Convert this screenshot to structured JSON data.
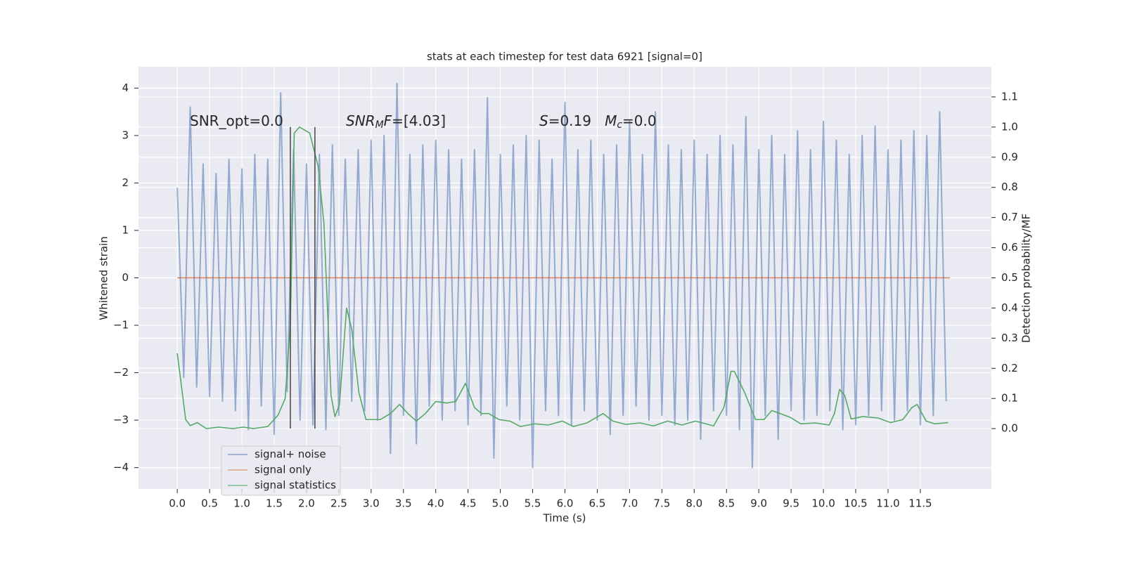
{
  "chart_data": {
    "type": "line",
    "title": "stats at each timestep for test data 6921 [signal=0]",
    "xlabel": "Time (s)",
    "ylabel": "Whitened strain",
    "y2label": "Detection probability/MF",
    "xlim": [
      -0.6,
      12.6
    ],
    "ylim": [
      -4.45,
      4.45
    ],
    "y2lim": [
      -0.2,
      1.2
    ],
    "xticks": [
      {
        "value": 0,
        "label": "0.0"
      },
      0.5,
      {
        "value": 1,
        "label": "1.0"
      },
      1.5,
      {
        "value": 2,
        "label": "2.0"
      },
      2.5,
      {
        "value": 3,
        "label": "3.0"
      },
      3.5,
      {
        "value": 4,
        "label": "4.0"
      },
      4.5,
      {
        "value": 5,
        "label": "5.0"
      },
      5.5,
      {
        "value": 6,
        "label": "6.0"
      },
      6.5,
      {
        "value": 7,
        "label": "7.0"
      },
      7.5,
      {
        "value": 8,
        "label": "8.0"
      },
      8.5,
      {
        "value": 9,
        "label": "9.0"
      },
      9.5,
      {
        "value": 10,
        "label": "10.0"
      },
      10.5,
      {
        "value": 11,
        "label": "11.0"
      },
      11.5
    ],
    "yticks": [
      {
        "value": -4,
        "label": "−4"
      },
      {
        "value": -3,
        "label": "−3"
      },
      {
        "value": -2,
        "label": "−2"
      },
      {
        "value": -1,
        "label": "−1"
      },
      0,
      1,
      2,
      3,
      4
    ],
    "y2ticks": [
      {
        "value": 0,
        "label": "0.0"
      },
      0.1,
      0.2,
      0.3,
      0.4,
      0.5,
      0.6,
      0.7,
      0.8,
      0.9,
      {
        "value": 1,
        "label": "1.0"
      },
      1.1
    ],
    "grid": true,
    "legend": "lower left",
    "series": [
      {
        "name": "signal+ noise",
        "color": "#4c72b0",
        "x": [
          0,
          0.1,
          0.2,
          0.3,
          0.4,
          0.5,
          0.6,
          0.7,
          0.8,
          0.9,
          1,
          1.1,
          1.2,
          1.3,
          1.4,
          1.5,
          1.6,
          1.7,
          1.8,
          1.9,
          2,
          2.1,
          2.2,
          2.3,
          2.4,
          2.5,
          2.6,
          2.7,
          2.8,
          2.9,
          3,
          3.1,
          3.2,
          3.3,
          3.4,
          3.5,
          3.6,
          3.7,
          3.8,
          3.9,
          4,
          4.1,
          4.2,
          4.3,
          4.4,
          4.5,
          4.6,
          4.7,
          4.8,
          4.9,
          5,
          5.1,
          5.2,
          5.3,
          5.4,
          5.5,
          5.6,
          5.7,
          5.8,
          5.9,
          6,
          6.1,
          6.2,
          6.3,
          6.4,
          6.5,
          6.6,
          6.7,
          6.8,
          6.9,
          7,
          7.1,
          7.2,
          7.3,
          7.4,
          7.5,
          7.6,
          7.7,
          7.8,
          7.9,
          8,
          8.1,
          8.2,
          8.3,
          8.4,
          8.5,
          8.6,
          8.7,
          8.8,
          8.9,
          9,
          9.1,
          9.2,
          9.3,
          9.4,
          9.5,
          9.6,
          9.7,
          9.8,
          9.9,
          10,
          10.1,
          10.2,
          10.3,
          10.4,
          10.5,
          10.6,
          10.7,
          10.8,
          10.9,
          11,
          11.1,
          11.2,
          11.3,
          11.4,
          11.5,
          11.6,
          11.7,
          11.8,
          11.9
        ],
        "values": [
          1.9,
          -2.1,
          3.6,
          -2.3,
          2.4,
          -2.5,
          2.2,
          -2.6,
          2.5,
          -2.8,
          2.3,
          -3.2,
          2.6,
          -2.7,
          2.5,
          -3.3,
          3.9,
          -2.4,
          2.7,
          -3.0,
          2.4,
          -3.1,
          2.6,
          -3.2,
          2.8,
          -2.9,
          2.5,
          -2.6,
          2.7,
          -2.8,
          2.9,
          -3.0,
          3.0,
          -3.7,
          4.1,
          -2.9,
          2.6,
          -3.5,
          2.8,
          -2.7,
          2.9,
          -3.0,
          2.7,
          -2.8,
          2.5,
          -3.1,
          2.7,
          -2.9,
          3.8,
          -3.8,
          2.6,
          -2.7,
          2.8,
          -3.0,
          3.0,
          -4.0,
          2.9,
          -2.8,
          2.5,
          -2.9,
          3.7,
          -3.1,
          2.7,
          -2.8,
          2.9,
          -3.0,
          2.6,
          -3.3,
          2.8,
          -2.9,
          3.3,
          -2.7,
          2.6,
          -3.0,
          3.5,
          -2.9,
          2.8,
          -3.1,
          2.7,
          -3.0,
          2.9,
          -3.4,
          2.6,
          -2.8,
          3.0,
          -2.9,
          2.8,
          -3.2,
          3.4,
          -4.0,
          2.7,
          -2.9,
          3.0,
          -3.4,
          2.6,
          -2.8,
          3.1,
          -3.0,
          2.7,
          -2.9,
          3.3,
          -2.8,
          2.9,
          -3.2,
          2.6,
          -3.1,
          3.0,
          -2.9,
          3.2,
          -2.8,
          2.7,
          -3.0,
          2.9,
          -2.8,
          3.1,
          -3.1,
          3.0,
          -2.9,
          3.5,
          -2.6
        ]
      },
      {
        "name": "signal only",
        "color": "#dd8452",
        "x": [
          0,
          11.96
        ],
        "values": [
          0,
          0
        ]
      },
      {
        "name": "signal statistics",
        "color": "#55a868",
        "axis": "y2",
        "x": [
          0,
          0.13,
          0.2,
          0.31,
          0.45,
          0.64,
          0.86,
          1.02,
          1.18,
          1.4,
          1.56,
          1.67,
          1.75,
          1.81,
          1.89,
          2.05,
          2.18,
          2.27,
          2.38,
          2.44,
          2.51,
          2.62,
          2.7,
          2.81,
          2.92,
          3.14,
          3.3,
          3.44,
          3.57,
          3.7,
          3.84,
          4.0,
          4.17,
          4.31,
          4.46,
          4.6,
          4.71,
          4.82,
          4.98,
          5.15,
          5.31,
          5.53,
          5.74,
          5.96,
          6.13,
          6.34,
          6.59,
          6.74,
          6.94,
          7.16,
          7.37,
          7.59,
          7.81,
          8.02,
          8.3,
          8.46,
          8.57,
          8.62,
          8.78,
          8.95,
          9.08,
          9.2,
          9.33,
          9.49,
          9.65,
          9.87,
          10.09,
          10.17,
          10.25,
          10.33,
          10.43,
          10.61,
          10.85,
          11.04,
          11.23,
          11.37,
          11.45,
          11.59,
          11.72,
          11.93
        ],
        "values": [
          0.25,
          0.03,
          0.01,
          0.02,
          0.0,
          0.005,
          0.0,
          0.005,
          0.0,
          0.007,
          0.045,
          0.1,
          0.35,
          0.98,
          1.0,
          0.98,
          0.87,
          0.68,
          0.11,
          0.04,
          0.08,
          0.4,
          0.33,
          0.12,
          0.03,
          0.03,
          0.05,
          0.08,
          0.05,
          0.025,
          0.05,
          0.09,
          0.085,
          0.09,
          0.15,
          0.07,
          0.05,
          0.05,
          0.03,
          0.025,
          0.007,
          0.016,
          0.012,
          0.025,
          0.007,
          0.019,
          0.05,
          0.025,
          0.014,
          0.019,
          0.009,
          0.025,
          0.012,
          0.025,
          0.009,
          0.07,
          0.19,
          0.19,
          0.12,
          0.03,
          0.03,
          0.06,
          0.05,
          0.037,
          0.016,
          0.019,
          0.012,
          0.05,
          0.13,
          0.11,
          0.032,
          0.04,
          0.035,
          0.02,
          0.03,
          0.07,
          0.08,
          0.025,
          0.016,
          0.02
        ]
      }
    ],
    "vlines": {
      "x": [
        1.75,
        2.13
      ],
      "ymin": 0,
      "ymax": 1,
      "axis": "y2",
      "color": "#444444"
    },
    "annotations": [
      {
        "parts": [
          {
            "text": "SNR_opt=0.0"
          }
        ]
      },
      {
        "parts": [
          {
            "text": "SNR",
            "italic": true
          },
          {
            "text": "M",
            "italic": true,
            "sub": true
          },
          {
            "text": "F",
            "italic": true
          },
          {
            "text": "=[4.03]"
          }
        ]
      },
      {
        "parts": [
          {
            "text": "S",
            "italic": true
          },
          {
            "text": "=0.19   "
          },
          {
            "text": "M",
            "italic": true
          },
          {
            "text": "c",
            "italic": true,
            "sub": true
          },
          {
            "text": "=0.0"
          }
        ]
      }
    ]
  }
}
